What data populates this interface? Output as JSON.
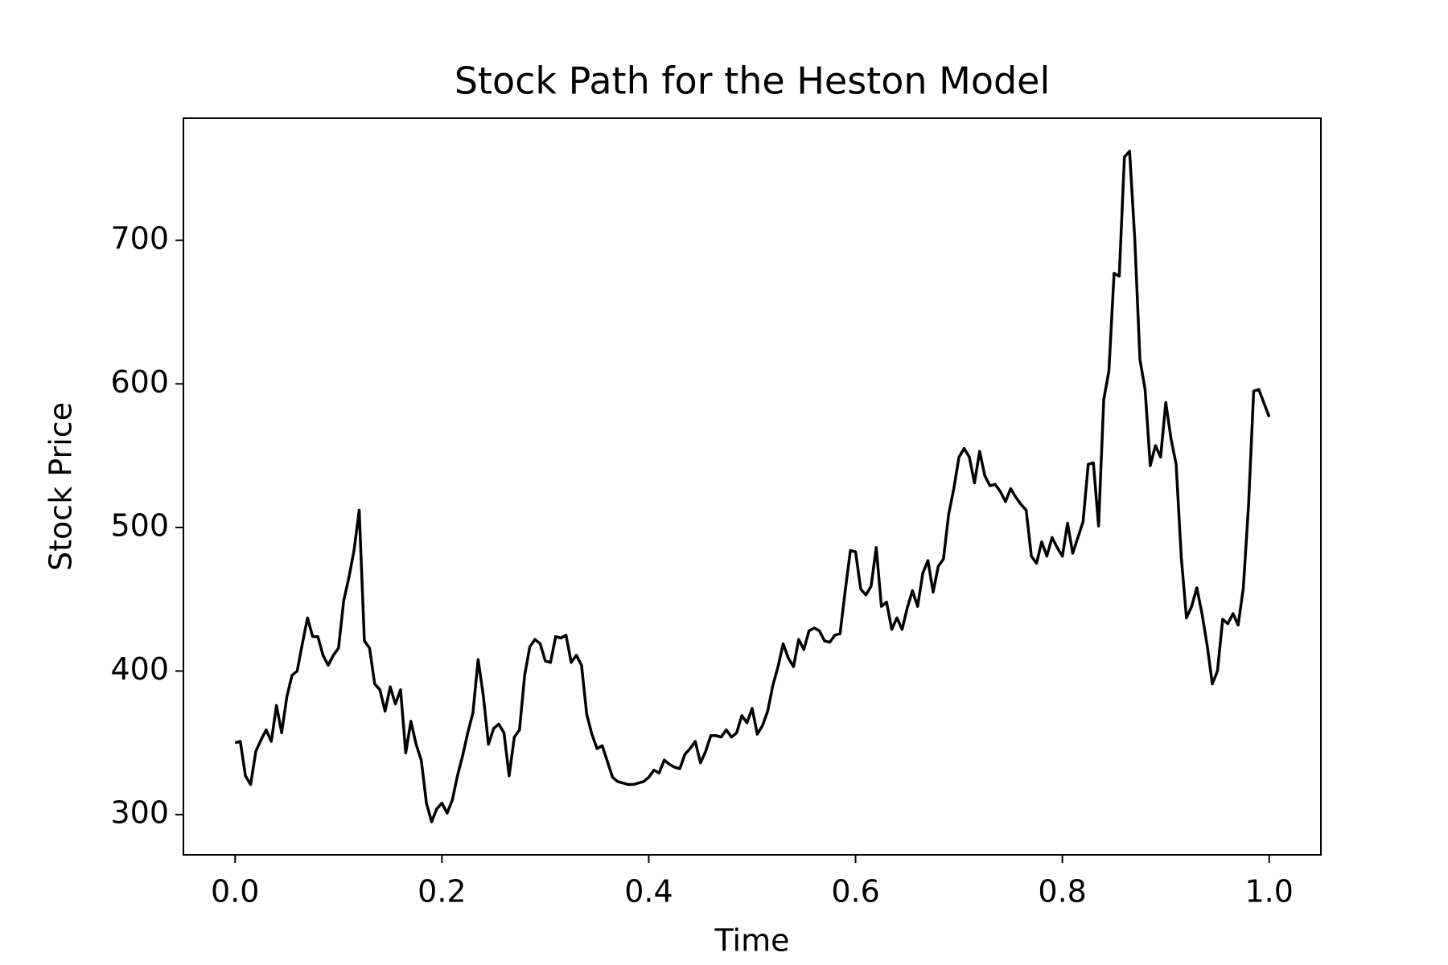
{
  "chart_data": {
    "type": "line",
    "title": "Stock Path for the Heston Model",
    "x_label": "Time",
    "y_label": "Stock Price",
    "xlim": [
      -0.05,
      1.05
    ],
    "ylim": [
      272,
      785
    ],
    "xticks": [
      {
        "value": 0,
        "label": "0.0"
      },
      0.2,
      0.4,
      0.6,
      0.8,
      {
        "value": 1,
        "label": "1.0"
      }
    ],
    "yticks": [
      300,
      400,
      500,
      600,
      700
    ],
    "series": [
      {
        "color": "#000000",
        "x": [
          0,
          0.005,
          0.01,
          0.015,
          0.02,
          0.025,
          0.03,
          0.035,
          0.04,
          0.045,
          0.05,
          0.055,
          0.06,
          0.065,
          0.07,
          0.075,
          0.08,
          0.085,
          0.09,
          0.095,
          0.1,
          0.105,
          0.11,
          0.115,
          0.12,
          0.125,
          0.13,
          0.135,
          0.14,
          0.145,
          0.15,
          0.155,
          0.16,
          0.165,
          0.17,
          0.175,
          0.18,
          0.185,
          0.19,
          0.195,
          0.2,
          0.205,
          0.21,
          0.215,
          0.22,
          0.225,
          0.23,
          0.235,
          0.24,
          0.245,
          0.25,
          0.255,
          0.26,
          0.265,
          0.27,
          0.275,
          0.28,
          0.285,
          0.29,
          0.295,
          0.3,
          0.305,
          0.31,
          0.315,
          0.32,
          0.325,
          0.33,
          0.335,
          0.34,
          0.345,
          0.35,
          0.355,
          0.36,
          0.365,
          0.37,
          0.375,
          0.38,
          0.385,
          0.39,
          0.395,
          0.4,
          0.405,
          0.41,
          0.415,
          0.42,
          0.425,
          0.43,
          0.435,
          0.44,
          0.445,
          0.45,
          0.455,
          0.46,
          0.465,
          0.47,
          0.475,
          0.48,
          0.485,
          0.49,
          0.495,
          0.5,
          0.505,
          0.51,
          0.515,
          0.52,
          0.525,
          0.53,
          0.535,
          0.54,
          0.545,
          0.55,
          0.555,
          0.56,
          0.565,
          0.57,
          0.575,
          0.58,
          0.585,
          0.59,
          0.595,
          0.6,
          0.605,
          0.61,
          0.615,
          0.62,
          0.625,
          0.63,
          0.635,
          0.64,
          0.645,
          0.65,
          0.655,
          0.66,
          0.665,
          0.67,
          0.675,
          0.68,
          0.685,
          0.69,
          0.695,
          0.7,
          0.705,
          0.71,
          0.715,
          0.72,
          0.725,
          0.73,
          0.735,
          0.74,
          0.745,
          0.75,
          0.755,
          0.76,
          0.765,
          0.77,
          0.775,
          0.78,
          0.785,
          0.79,
          0.795,
          0.8,
          0.805,
          0.81,
          0.815,
          0.82,
          0.825,
          0.83,
          0.835,
          0.84,
          0.845,
          0.85,
          0.855,
          0.86,
          0.865,
          0.87,
          0.875,
          0.88,
          0.885,
          0.89,
          0.895,
          0.9,
          0.905,
          0.91,
          0.915,
          0.92,
          0.925,
          0.93,
          0.935,
          0.94,
          0.945,
          0.95,
          0.955,
          0.96,
          0.965,
          0.97,
          0.975,
          0.98,
          0.985,
          0.99,
          1.0
        ],
        "values": [
          350,
          351,
          327,
          321,
          344,
          352,
          359,
          351,
          376,
          357,
          382,
          397,
          400,
          419,
          437,
          424,
          424,
          411,
          404,
          411,
          416,
          449,
          465,
          484,
          512,
          421,
          416,
          391,
          387,
          372,
          389,
          377,
          387,
          343,
          365,
          349,
          338,
          308,
          295,
          304,
          308,
          301,
          310,
          327,
          341,
          357,
          371,
          408,
          383,
          349,
          360,
          363,
          357,
          327,
          354,
          359,
          397,
          417,
          422,
          419,
          407,
          406,
          424,
          423,
          425,
          406,
          411,
          404,
          370,
          356,
          346,
          348,
          337,
          326,
          323,
          322,
          321,
          321,
          322,
          323,
          326,
          331,
          329,
          338,
          335,
          333,
          332,
          342,
          346,
          351,
          336,
          344,
          355,
          355,
          354,
          359,
          354,
          357,
          369,
          364,
          374,
          356,
          362,
          372,
          390,
          403,
          419,
          409,
          403,
          422,
          415,
          428,
          430,
          428,
          421,
          420,
          425,
          426,
          456,
          484,
          483,
          457,
          453,
          459,
          486,
          445,
          448,
          429,
          437,
          429,
          444,
          456,
          445,
          468,
          477,
          455,
          473,
          478,
          509,
          527,
          549,
          555,
          549,
          531,
          553,
          536,
          529,
          530,
          525,
          518,
          527,
          521,
          516,
          512,
          480,
          475,
          490,
          480,
          493,
          486,
          480,
          503,
          482,
          493,
          504,
          544,
          545,
          501,
          589,
          609,
          677,
          675,
          758,
          762,
          701,
          617,
          596,
          543,
          557,
          549,
          587,
          562,
          544,
          479,
          437,
          445,
          458,
          440,
          418,
          391,
          400,
          436,
          433,
          440,
          432,
          458,
          515,
          595,
          596,
          577
        ]
      }
    ]
  }
}
